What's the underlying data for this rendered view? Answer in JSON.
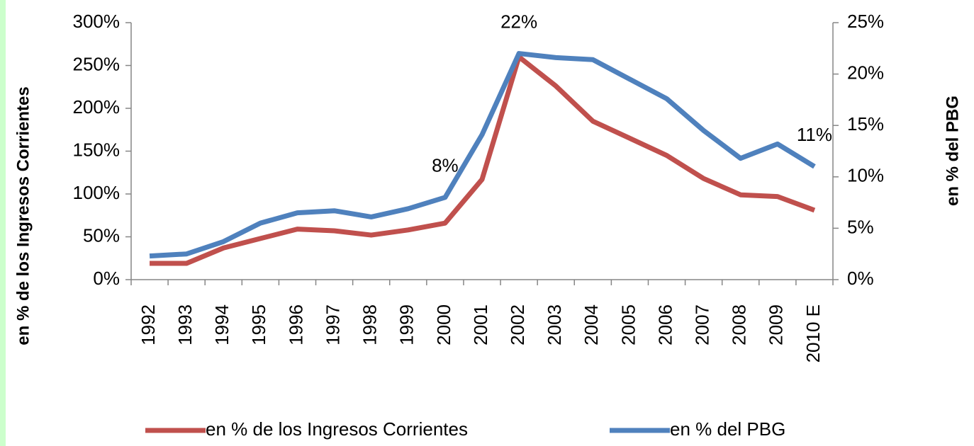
{
  "chart_data": {
    "type": "line",
    "categories": [
      "1992",
      "1993",
      "1994",
      "1995",
      "1996",
      "1997",
      "1998",
      "1999",
      "2000",
      "2001",
      "2002",
      "2003",
      "2004",
      "2005",
      "2006",
      "2007",
      "2008",
      "2009",
      "2010 E"
    ],
    "series": [
      {
        "name": "en % de los Ingresos Corrientes",
        "color": "#c0504d",
        "axis": "y",
        "values": [
          19,
          19,
          37,
          48,
          59,
          57,
          52,
          58,
          66,
          117,
          260,
          226,
          185,
          165,
          145,
          118,
          99,
          97,
          81
        ]
      },
      {
        "name": "en % del PBG",
        "color": "#4f81bd",
        "axis": "y2",
        "values": [
          2.3,
          2.5,
          3.7,
          5.5,
          6.5,
          6.7,
          6.1,
          6.9,
          8,
          14.1,
          22,
          21.6,
          21.4,
          19.5,
          17.6,
          14.5,
          11.8,
          13.2,
          11
        ],
        "value_labels": [
          null,
          null,
          null,
          null,
          null,
          null,
          null,
          null,
          "8%",
          null,
          "22%",
          null,
          null,
          null,
          null,
          null,
          null,
          null,
          "11%"
        ]
      }
    ],
    "ylabel": "en % de los Ingresos Corrientes",
    "y2label": "en % del PBG",
    "ylim": [
      0,
      300
    ],
    "yticks": [
      {
        "value": 0,
        "label": "0%"
      },
      {
        "value": 50,
        "label": "50%"
      },
      {
        "value": 100,
        "label": "100%"
      },
      {
        "value": 150,
        "label": "150%"
      },
      {
        "value": 200,
        "label": "200%"
      },
      {
        "value": 250,
        "label": "250%"
      },
      {
        "value": 300,
        "label": "300%"
      }
    ],
    "y2lim": [
      0,
      25
    ],
    "y2ticks": [
      {
        "value": 0,
        "label": "0%"
      },
      {
        "value": 5,
        "label": "5%"
      },
      {
        "value": 10,
        "label": "10%"
      },
      {
        "value": 15,
        "label": "15%"
      },
      {
        "value": 20,
        "label": "20%"
      },
      {
        "value": 25,
        "label": "25%"
      }
    ],
    "grid": false,
    "legend": "bottom"
  }
}
